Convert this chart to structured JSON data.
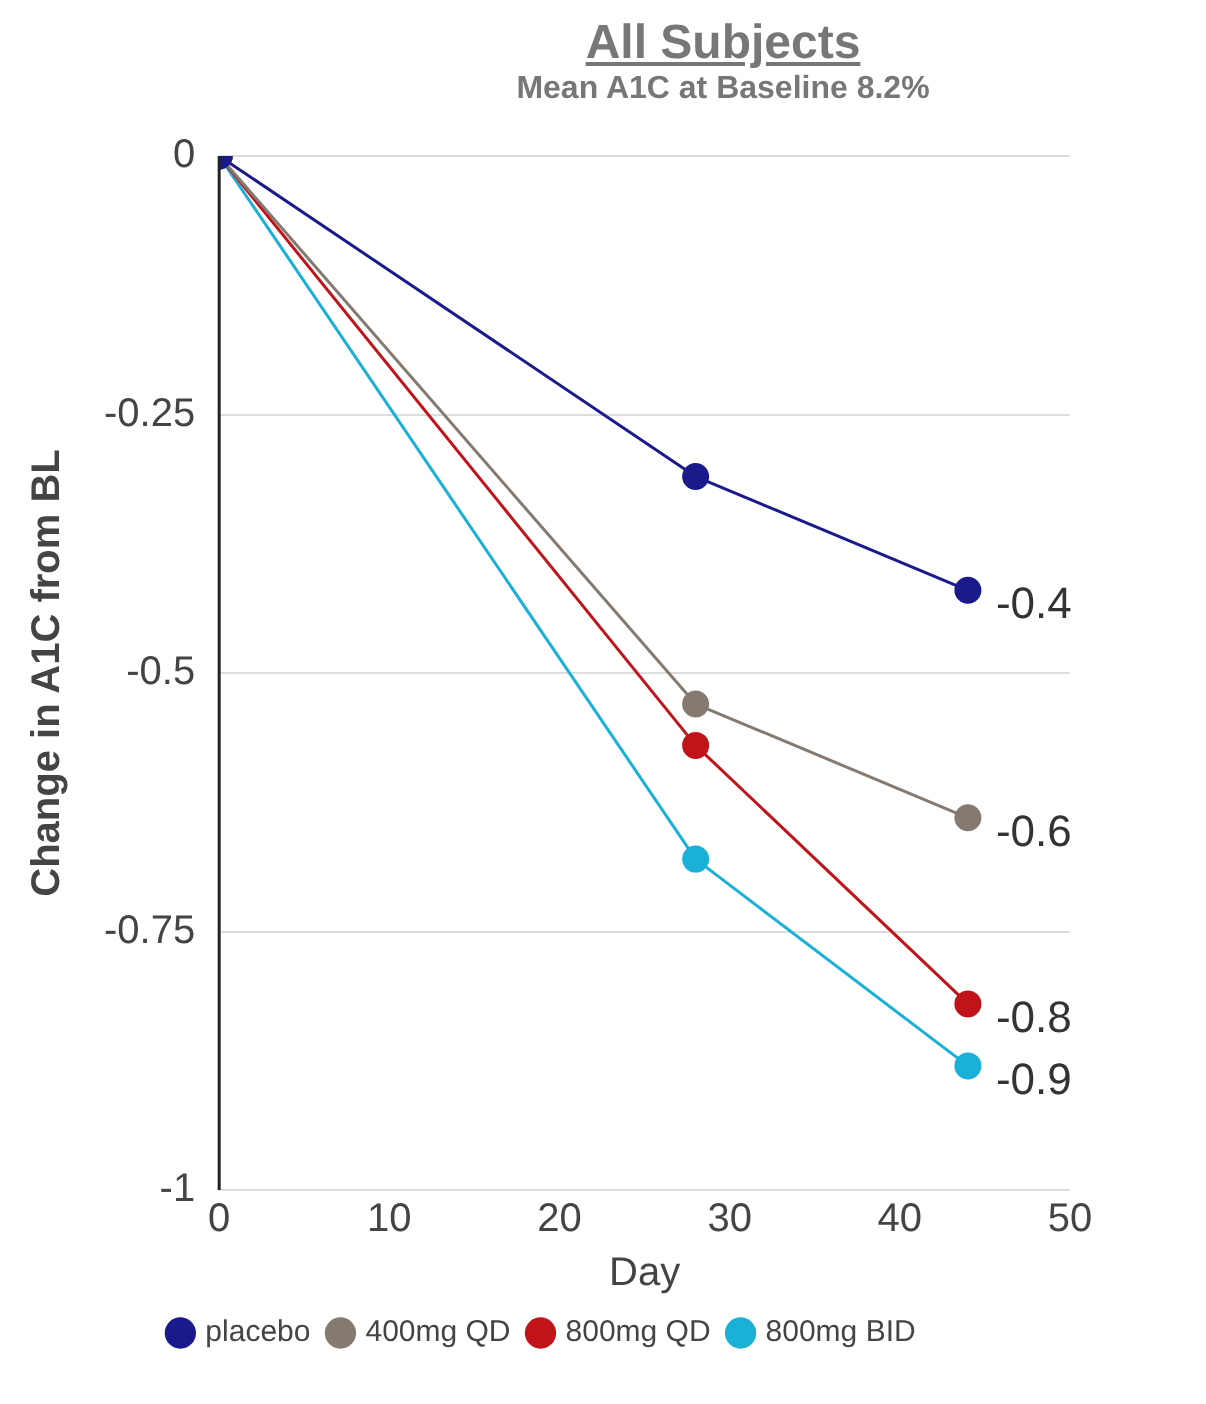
{
  "chart_data": {
    "type": "line",
    "title": "All Subjects",
    "subtitle": "Mean A1C at Baseline 8.2%",
    "xlabel": "Day",
    "ylabel": "Change in A1C from BL",
    "x": [
      0,
      28,
      44
    ],
    "series": [
      {
        "name": "placebo",
        "color": "#1a1a8c",
        "values": [
          0,
          -0.31,
          -0.42
        ],
        "value_labels": [
          null,
          null,
          "-0.4"
        ]
      },
      {
        "name": "400mg QD",
        "color": "#857a70",
        "values": [
          0,
          -0.53,
          -0.64
        ],
        "value_labels": [
          null,
          null,
          "-0.6"
        ]
      },
      {
        "name": "800mg QD",
        "color": "#c0141a",
        "values": [
          0,
          -0.57,
          -0.82
        ],
        "value_labels": [
          null,
          null,
          "-0.8"
        ]
      },
      {
        "name": "800mg BID",
        "color": "#1ab0d8",
        "values": [
          0,
          -0.68,
          -0.88
        ],
        "value_labels": [
          null,
          null,
          "-0.9"
        ]
      }
    ],
    "xlim": [
      0,
      50
    ],
    "xticks": [
      0,
      10,
      20,
      30,
      40,
      50
    ],
    "ylim": [
      -1,
      0
    ],
    "yticks": [
      {
        "value": 0,
        "label": "0"
      },
      {
        "value": -0.25,
        "label": "-0.25"
      },
      {
        "value": -0.5,
        "label": "-0.5"
      },
      {
        "value": -0.75,
        "label": "-0.75"
      },
      {
        "value": -1,
        "label": "-1"
      }
    ],
    "grid": "y",
    "legend": "bottom",
    "marker": "circle",
    "line_style": "solid"
  }
}
